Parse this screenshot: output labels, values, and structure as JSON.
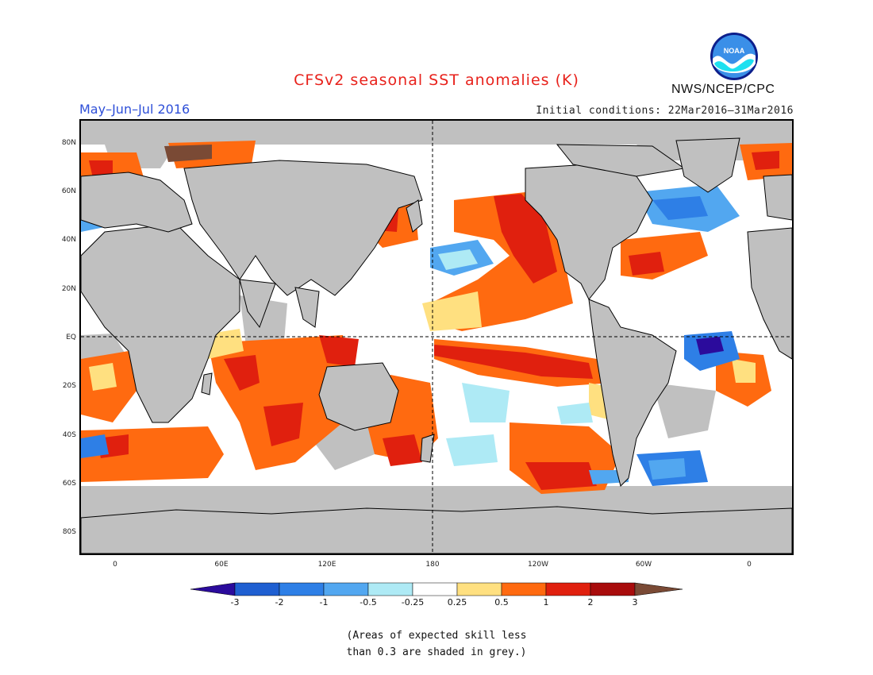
{
  "header": {
    "title": "CFSv2 seasonal SST anomalies (K)",
    "period": "May–Jun–Jul 2016",
    "initial_conditions": "Initial conditions: 22Mar2016–31Mar2016",
    "organization": "NWS/NCEP/CPC",
    "logo_text": "NOAA"
  },
  "map": {
    "lat_labels": [
      "80N",
      "60N",
      "40N",
      "20N",
      "EQ",
      "20S",
      "40S",
      "60S",
      "80S"
    ],
    "lon_labels": [
      "0",
      "60E",
      "120E",
      "180",
      "120W",
      "60W",
      "0"
    ],
    "land_color": "#c0c0c0"
  },
  "legend": {
    "labels": [
      "-3",
      "-2",
      "-1",
      "-0.5",
      "-0.25",
      "0.25",
      "0.5",
      "1",
      "2",
      "3"
    ],
    "colors": [
      "#2b0b9c",
      "#1f5fd1",
      "#2e7fe6",
      "#52a7f0",
      "#aeeaf5",
      "#ffffff",
      "#ffe080",
      "#ff6a10",
      "#e0200e",
      "#a80c0c",
      "#7a4a35"
    ]
  },
  "note": {
    "line1": "(Areas of expected skill less",
    "line2": "than 0.3 are shaded in grey.)"
  }
}
